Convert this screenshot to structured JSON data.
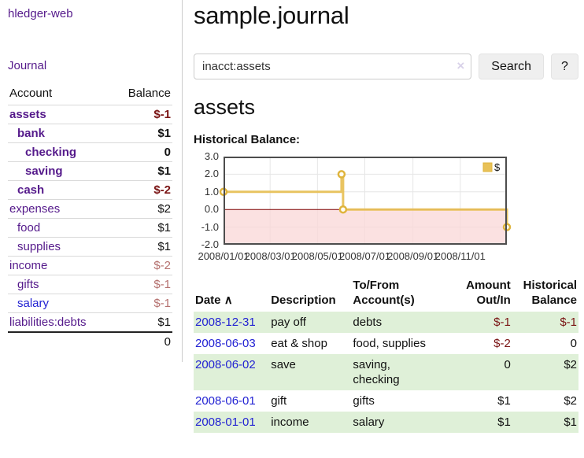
{
  "colors": {
    "accent_purple": "#551a8b",
    "link_blue": "#2323d3",
    "neg_dark": "#7a1414",
    "neg_light": "#b5716f",
    "row_green": "#dff0d8",
    "divider": "#cccccc",
    "chart_line": "#e8c158",
    "chart_marker_stroke": "#dfb43c",
    "chart_neg_fill": "#fad7d7",
    "zero_line": "#7d0000",
    "plot_border": "#4d4d4d",
    "grid": "#e6e6e6"
  },
  "sidebar": {
    "app_title": "hledger-web",
    "nav_journal": "Journal",
    "accounts_table": {
      "h_account": "Account",
      "h_balance": "Balance",
      "rows": [
        {
          "name": "assets",
          "depth": 1,
          "bold": true,
          "balance": "$-1",
          "negative": true,
          "blue": false
        },
        {
          "name": "bank",
          "depth": 2,
          "bold": true,
          "balance": "$1",
          "negative": false,
          "blue": false
        },
        {
          "name": "checking",
          "depth": 3,
          "bold": true,
          "balance": "0",
          "negative": false,
          "blue": false
        },
        {
          "name": "saving",
          "depth": 3,
          "bold": true,
          "balance": "$1",
          "negative": false,
          "blue": false
        },
        {
          "name": "cash",
          "depth": 2,
          "bold": true,
          "balance": "$-2",
          "negative": true,
          "blue": false
        },
        {
          "name": "expenses",
          "depth": 1,
          "bold": false,
          "balance": "$2",
          "negative": false,
          "blue": false
        },
        {
          "name": "food",
          "depth": 2,
          "bold": false,
          "balance": "$1",
          "negative": false,
          "blue": false
        },
        {
          "name": "supplies",
          "depth": 2,
          "bold": false,
          "balance": "$1",
          "negative": false,
          "blue": false
        },
        {
          "name": "income",
          "depth": 1,
          "bold": false,
          "balance": "$-2",
          "negative": true,
          "blue": false
        },
        {
          "name": "gifts",
          "depth": 2,
          "bold": false,
          "balance": "$-1",
          "negative": true,
          "blue": false
        },
        {
          "name": "salary",
          "depth": 2,
          "bold": false,
          "balance": "$-1",
          "negative": true,
          "blue": true
        },
        {
          "name": "liabilities:debts",
          "depth": 1,
          "bold": false,
          "balance": "$1",
          "negative": false,
          "blue": false
        }
      ],
      "total": "0"
    }
  },
  "main": {
    "title": "sample.journal",
    "search": {
      "value": "inacct:assets",
      "clear_icon": "×",
      "button_label": "Search",
      "help_label": "?"
    },
    "account_heading": "assets",
    "chart_label": "Historical Balance:",
    "register": {
      "h_date": "Date",
      "sort_icon": "∧",
      "h_description": "Description",
      "h_accounts": "To/From\nAccount(s)",
      "h_amount": "Amount\nOut/In",
      "h_balance": "Historical\nBalance",
      "rows": [
        {
          "date": "2008-12-31",
          "description": "pay off",
          "accounts": "debts",
          "amount": "$-1",
          "amount_neg": true,
          "balance": "$-1",
          "balance_neg": true,
          "shaded": true
        },
        {
          "date": "2008-06-03",
          "description": "eat & shop",
          "accounts": "food, supplies",
          "amount": "$-2",
          "amount_neg": true,
          "balance": "0",
          "balance_neg": false,
          "shaded": false
        },
        {
          "date": "2008-06-02",
          "description": "save",
          "accounts": "saving,\nchecking",
          "amount": "0",
          "amount_neg": false,
          "balance": "$2",
          "balance_neg": false,
          "shaded": true
        },
        {
          "date": "2008-06-01",
          "description": "gift",
          "accounts": "gifts",
          "amount": "$1",
          "amount_neg": false,
          "balance": "$2",
          "balance_neg": false,
          "shaded": false
        },
        {
          "date": "2008-01-01",
          "description": "income",
          "accounts": "salary",
          "amount": "$1",
          "amount_neg": false,
          "balance": "$1",
          "balance_neg": false,
          "shaded": true
        }
      ]
    }
  },
  "chart_data": {
    "type": "line",
    "step": true,
    "title": "Historical Balance",
    "legend": "$",
    "legend_position": "top-right",
    "series": [
      {
        "name": "$",
        "points": [
          [
            "2008-01-01",
            1
          ],
          [
            "2008-06-01",
            2
          ],
          [
            "2008-06-03",
            0
          ],
          [
            "2008-12-31",
            -1
          ]
        ]
      }
    ],
    "xlim": [
      "2008-01-01",
      "2008-12-31"
    ],
    "ylim": [
      -2,
      3
    ],
    "y_ticks": [
      3,
      2,
      1,
      0,
      -1,
      -2
    ],
    "x_ticks": [
      "2008/01/01",
      "2008/03/01",
      "2008/05/01",
      "2008/07/01",
      "2008/09/01",
      "2008/11/01"
    ],
    "grid": true,
    "negative_region_shaded": true
  }
}
